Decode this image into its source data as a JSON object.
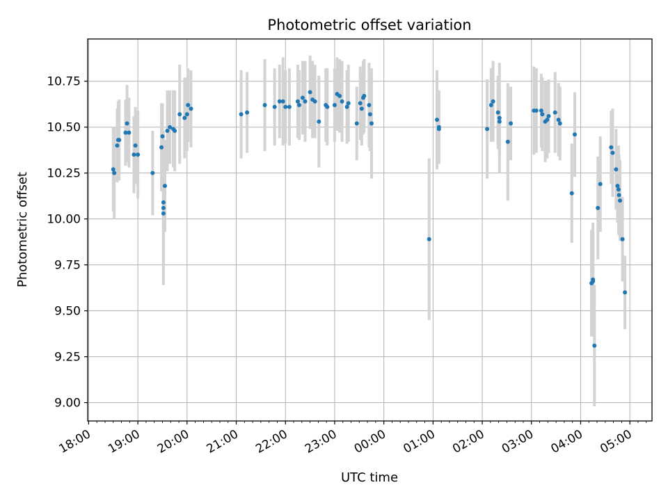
{
  "chart_data": {
    "type": "scatter",
    "title": "Photometric offset variation",
    "xlabel": "UTC time",
    "ylabel": "Photometric offset",
    "x_tick_labels": [
      "18:00",
      "19:00",
      "20:00",
      "21:00",
      "22:00",
      "23:00",
      "00:00",
      "01:00",
      "02:00",
      "03:00",
      "04:00",
      "05:00"
    ],
    "y_tick_labels": [
      "9.00",
      "9.25",
      "9.50",
      "9.75",
      "10.00",
      "10.25",
      "10.50",
      "10.75"
    ],
    "y_ticks": [
      9.0,
      9.25,
      9.5,
      9.75,
      10.0,
      10.25,
      10.5,
      10.75
    ],
    "xlim": [
      -0.02,
      11.45
    ],
    "ylim": [
      8.9,
      10.98
    ],
    "grid": true,
    "marker_color": "#1f77b4",
    "errorbar_color": "#d3d3d3",
    "x_units": "hours after 18:00 UTC",
    "points": [
      {
        "x": 0.5,
        "y": 10.27,
        "err": 0.23
      },
      {
        "x": 0.52,
        "y": 10.25,
        "err": 0.25
      },
      {
        "x": 0.58,
        "y": 10.4,
        "err": 0.2
      },
      {
        "x": 0.6,
        "y": 10.43,
        "err": 0.21
      },
      {
        "x": 0.62,
        "y": 10.43,
        "err": 0.22
      },
      {
        "x": 0.75,
        "y": 10.47,
        "err": 0.18
      },
      {
        "x": 0.78,
        "y": 10.52,
        "err": 0.21
      },
      {
        "x": 0.82,
        "y": 10.47,
        "err": 0.19
      },
      {
        "x": 0.92,
        "y": 10.35,
        "err": 0.21
      },
      {
        "x": 0.95,
        "y": 10.4,
        "err": 0.21
      },
      {
        "x": 1.0,
        "y": 10.35,
        "err": 0.24
      },
      {
        "x": 1.3,
        "y": 10.25,
        "err": 0.23
      },
      {
        "x": 1.48,
        "y": 10.39,
        "err": 0.24
      },
      {
        "x": 1.5,
        "y": 10.45,
        "err": 0.18
      },
      {
        "x": 1.52,
        "y": 10.09,
        "err": 0.31
      },
      {
        "x": 1.52,
        "y": 10.06,
        "err": 0.42
      },
      {
        "x": 1.52,
        "y": 10.03,
        "err": 0.28
      },
      {
        "x": 1.55,
        "y": 10.18,
        "err": 0.25
      },
      {
        "x": 1.6,
        "y": 10.48,
        "err": 0.22
      },
      {
        "x": 1.65,
        "y": 10.5,
        "err": 0.2
      },
      {
        "x": 1.72,
        "y": 10.49,
        "err": 0.21
      },
      {
        "x": 1.75,
        "y": 10.48,
        "err": 0.22
      },
      {
        "x": 1.85,
        "y": 10.57,
        "err": 0.27
      },
      {
        "x": 1.95,
        "y": 10.55,
        "err": 0.22
      },
      {
        "x": 2.0,
        "y": 10.57,
        "err": 0.2
      },
      {
        "x": 2.02,
        "y": 10.62,
        "err": 0.2
      },
      {
        "x": 2.08,
        "y": 10.6,
        "err": 0.21
      },
      {
        "x": 3.1,
        "y": 10.57,
        "err": 0.24
      },
      {
        "x": 3.22,
        "y": 10.58,
        "err": 0.22
      },
      {
        "x": 3.58,
        "y": 10.62,
        "err": 0.25
      },
      {
        "x": 3.78,
        "y": 10.61,
        "err": 0.21
      },
      {
        "x": 3.88,
        "y": 10.64,
        "err": 0.2
      },
      {
        "x": 3.95,
        "y": 10.64,
        "err": 0.24
      },
      {
        "x": 4.0,
        "y": 10.61,
        "err": 0.2
      },
      {
        "x": 4.08,
        "y": 10.61,
        "err": 0.21
      },
      {
        "x": 4.25,
        "y": 10.64,
        "err": 0.2
      },
      {
        "x": 4.28,
        "y": 10.62,
        "err": 0.19
      },
      {
        "x": 4.35,
        "y": 10.66,
        "err": 0.2
      },
      {
        "x": 4.4,
        "y": 10.64,
        "err": 0.22
      },
      {
        "x": 4.5,
        "y": 10.69,
        "err": 0.2
      },
      {
        "x": 4.55,
        "y": 10.65,
        "err": 0.21
      },
      {
        "x": 4.6,
        "y": 10.64,
        "err": 0.2
      },
      {
        "x": 4.68,
        "y": 10.53,
        "err": 0.25
      },
      {
        "x": 4.82,
        "y": 10.62,
        "err": 0.2
      },
      {
        "x": 4.85,
        "y": 10.61,
        "err": 0.21
      },
      {
        "x": 5.0,
        "y": 10.62,
        "err": 0.2
      },
      {
        "x": 5.05,
        "y": 10.68,
        "err": 0.2
      },
      {
        "x": 5.1,
        "y": 10.67,
        "err": 0.2
      },
      {
        "x": 5.15,
        "y": 10.64,
        "err": 0.22
      },
      {
        "x": 5.25,
        "y": 10.61,
        "err": 0.2
      },
      {
        "x": 5.28,
        "y": 10.63,
        "err": 0.21
      },
      {
        "x": 5.45,
        "y": 10.52,
        "err": 0.2
      },
      {
        "x": 5.52,
        "y": 10.63,
        "err": 0.2
      },
      {
        "x": 5.55,
        "y": 10.6,
        "err": 0.2
      },
      {
        "x": 5.58,
        "y": 10.66,
        "err": 0.2
      },
      {
        "x": 5.6,
        "y": 10.67,
        "err": 0.2
      },
      {
        "x": 5.7,
        "y": 10.62,
        "err": 0.23
      },
      {
        "x": 5.72,
        "y": 10.57,
        "err": 0.2
      },
      {
        "x": 5.75,
        "y": 10.52,
        "err": 0.3
      },
      {
        "x": 6.92,
        "y": 9.89,
        "err": 0.44
      },
      {
        "x": 7.08,
        "y": 10.54,
        "err": 0.27
      },
      {
        "x": 7.12,
        "y": 10.5,
        "err": 0.2
      },
      {
        "x": 7.12,
        "y": 10.49,
        "err": 0.19
      },
      {
        "x": 8.1,
        "y": 10.49,
        "err": 0.27
      },
      {
        "x": 8.18,
        "y": 10.62,
        "err": 0.2
      },
      {
        "x": 8.22,
        "y": 10.64,
        "err": 0.22
      },
      {
        "x": 8.32,
        "y": 10.58,
        "err": 0.2
      },
      {
        "x": 8.35,
        "y": 10.55,
        "err": 0.3
      },
      {
        "x": 8.35,
        "y": 10.53,
        "err": 0.18
      },
      {
        "x": 8.52,
        "y": 10.42,
        "err": 0.32
      },
      {
        "x": 8.58,
        "y": 10.52,
        "err": 0.2
      },
      {
        "x": 9.05,
        "y": 10.59,
        "err": 0.24
      },
      {
        "x": 9.1,
        "y": 10.59,
        "err": 0.23
      },
      {
        "x": 9.2,
        "y": 10.59,
        "err": 0.2
      },
      {
        "x": 9.22,
        "y": 10.57,
        "err": 0.2
      },
      {
        "x": 9.28,
        "y": 10.53,
        "err": 0.22
      },
      {
        "x": 9.32,
        "y": 10.54,
        "err": 0.21
      },
      {
        "x": 9.35,
        "y": 10.56,
        "err": 0.2
      },
      {
        "x": 9.48,
        "y": 10.58,
        "err": 0.22
      },
      {
        "x": 9.55,
        "y": 10.54,
        "err": 0.2
      },
      {
        "x": 9.58,
        "y": 10.52,
        "err": 0.2
      },
      {
        "x": 9.82,
        "y": 10.14,
        "err": 0.27
      },
      {
        "x": 9.88,
        "y": 10.46,
        "err": 0.23
      },
      {
        "x": 10.22,
        "y": 9.65,
        "err": 0.29
      },
      {
        "x": 10.25,
        "y": 9.66,
        "err": 0.3
      },
      {
        "x": 10.25,
        "y": 9.67,
        "err": 0.31
      },
      {
        "x": 10.28,
        "y": 9.31,
        "err": 0.33
      },
      {
        "x": 10.35,
        "y": 10.06,
        "err": 0.28
      },
      {
        "x": 10.4,
        "y": 10.19,
        "err": 0.26
      },
      {
        "x": 10.62,
        "y": 10.39,
        "err": 0.2
      },
      {
        "x": 10.65,
        "y": 10.36,
        "err": 0.24
      },
      {
        "x": 10.72,
        "y": 10.27,
        "err": 0.22
      },
      {
        "x": 10.75,
        "y": 10.18,
        "err": 0.2
      },
      {
        "x": 10.77,
        "y": 10.16,
        "err": 0.24
      },
      {
        "x": 10.78,
        "y": 10.13,
        "err": 0.22
      },
      {
        "x": 10.8,
        "y": 10.1,
        "err": 0.22
      },
      {
        "x": 10.85,
        "y": 9.89,
        "err": 0.23
      },
      {
        "x": 10.9,
        "y": 9.6,
        "err": 0.2
      }
    ]
  }
}
